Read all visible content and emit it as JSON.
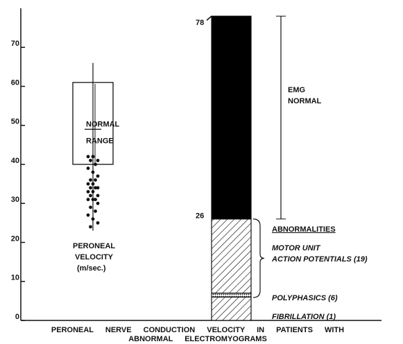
{
  "chart_data": {
    "type": "stacked-bar",
    "title_lines": [
      "PERONEAL NERVE CONDUCTION VELOCITY IN PATIENTS WITH",
      "ABNORMAL ELECTROMYOGRAMS"
    ],
    "ylim": [
      0,
      80
    ],
    "yticks": [
      0,
      10,
      20,
      30,
      40,
      50,
      60,
      70
    ],
    "velocity": {
      "label_lines": [
        "PERONEAL",
        "VELOCITY",
        "(m/sec.)"
      ],
      "range_label_lines": [
        "NORMAL",
        "RANGE"
      ],
      "range_low": 40,
      "range_high": 61,
      "mean": 49,
      "whisker_low": 23,
      "whisker_high": 66,
      "values": [
        42,
        42,
        41,
        41,
        40,
        39,
        38,
        37,
        36,
        36,
        35,
        35,
        34,
        34,
        34,
        33,
        33,
        32,
        32,
        31,
        31,
        31,
        30,
        29,
        28,
        27,
        26,
        25,
        24
      ]
    },
    "series": [
      {
        "name": "POLYPHASICS (6)",
        "values": [
          6
        ],
        "color": "hatch"
      },
      {
        "name": "FIBRILLATION (1)",
        "values": [
          1
        ],
        "color": "dots"
      },
      {
        "name": "MOTOR UNIT ACTION POTENTIALS (19)",
        "values": [
          19
        ],
        "color": "hatch"
      },
      {
        "name": "EMG NORMAL",
        "values": [
          52
        ],
        "color": "#000000"
      }
    ],
    "group_label": "ABNORMALITIES",
    "annotations": [
      {
        "text": "26",
        "value": 26
      },
      {
        "text": "78",
        "value": 78
      }
    ]
  }
}
